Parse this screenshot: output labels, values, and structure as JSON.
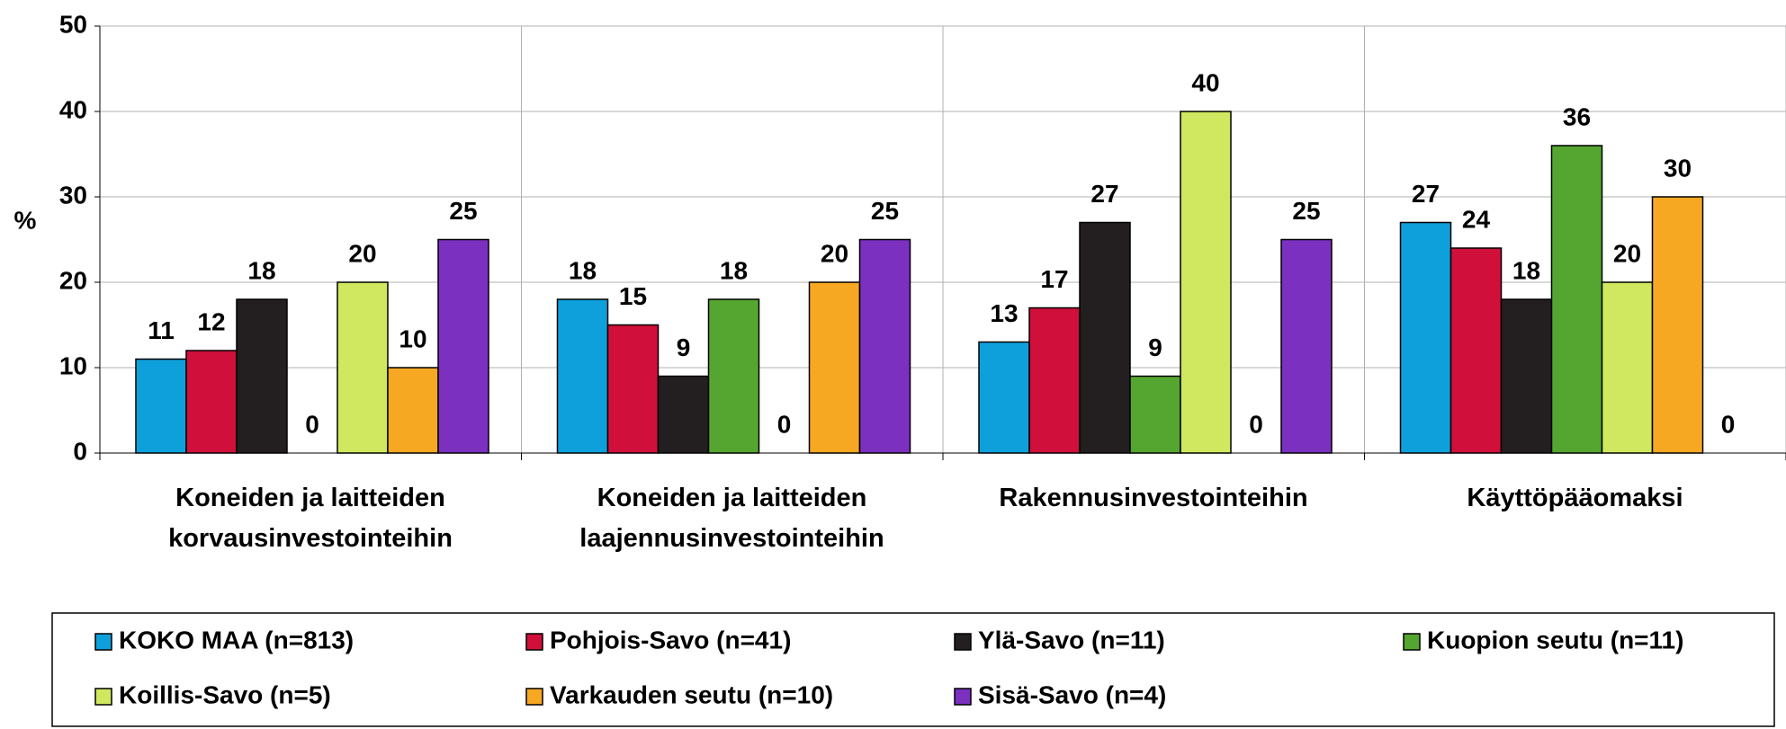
{
  "chart_data": {
    "type": "bar",
    "ylabel": "%",
    "categories": [
      "Koneiden ja laitteiden\nkorvausinvestointeihin",
      "Koneiden ja laitteiden\nlaajennusinvestointeihin",
      "Rakennusinvestointeihin",
      "Käyttöpääomaksi"
    ],
    "series": [
      {
        "name": "KOKO MAA (n=813)",
        "color": "#0ea0db",
        "values": [
          11,
          18,
          13,
          27
        ]
      },
      {
        "name": "Pohjois-Savo (n=41)",
        "color": "#d0103a",
        "values": [
          12,
          15,
          17,
          24
        ]
      },
      {
        "name": "Ylä-Savo (n=11)",
        "color": "#231f20",
        "values": [
          18,
          9,
          27,
          18
        ]
      },
      {
        "name": "Kuopion seutu (n=11)",
        "color": "#55a630",
        "values": [
          0,
          18,
          9,
          36
        ]
      },
      {
        "name": "Koillis-Savo (n=5)",
        "color": "#cfe860",
        "values": [
          20,
          0,
          40,
          20
        ]
      },
      {
        "name": "Varkauden seutu (n=10)",
        "color": "#f7a823",
        "values": [
          10,
          20,
          0,
          30
        ]
      },
      {
        "name": "Sisä-Savo (n=4)",
        "color": "#7b30c0",
        "values": [
          25,
          25,
          25,
          0
        ]
      }
    ],
    "ylim": [
      0,
      50
    ],
    "yticks": [
      0,
      10,
      20,
      30,
      40,
      50
    ],
    "grid": true,
    "legend": "bottom"
  }
}
